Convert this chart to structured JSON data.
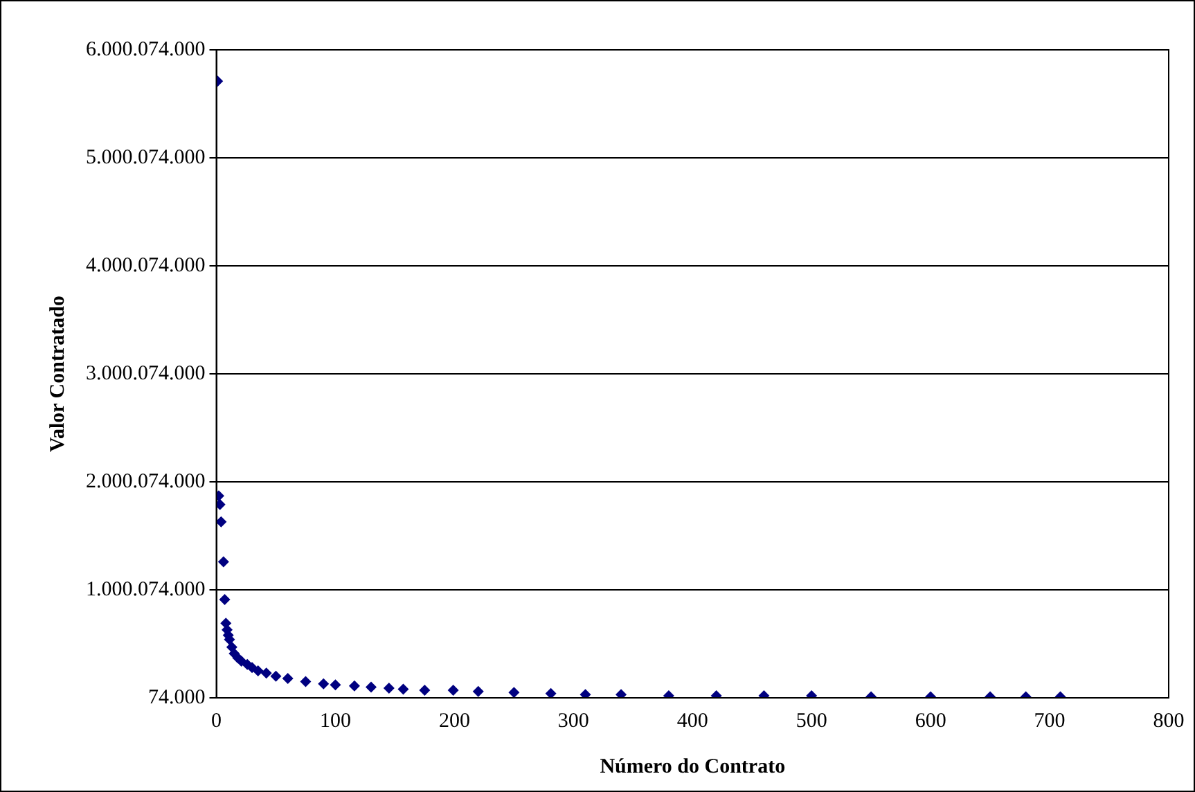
{
  "chart_data": {
    "type": "scatter",
    "xlabel": "Número do Contrato",
    "ylabel": "Valor Contratado",
    "x": [
      1,
      2,
      3,
      4,
      6,
      7,
      8,
      9,
      10,
      11,
      13,
      15,
      18,
      21,
      26,
      30,
      35,
      42,
      50,
      60,
      75,
      90,
      100,
      116,
      130,
      145,
      157,
      175,
      199,
      220,
      250,
      281,
      310,
      340,
      380,
      420,
      460,
      500,
      550,
      600,
      650,
      680,
      709
    ],
    "series": [
      {
        "color": "#000080",
        "values": [
          5710000000,
          1870000000,
          1790000000,
          1630000000,
          1260000000,
          910000000,
          690000000,
          630000000,
          580000000,
          540000000,
          470000000,
          410000000,
          370000000,
          340000000,
          310000000,
          280000000,
          250000000,
          230000000,
          200000000,
          180000000,
          150000000,
          130000000,
          120000000,
          110000000,
          100000000,
          90000000,
          80000000,
          70000000,
          70000000,
          60000000,
          50000000,
          40000000,
          30000000,
          30000000,
          20000000,
          20000000,
          20000000,
          20000000,
          10000000,
          10000000,
          10000000,
          10000000,
          10000000
        ]
      }
    ],
    "xlim": [
      0,
      800
    ],
    "xticks": [
      0,
      100,
      200,
      300,
      400,
      500,
      600,
      700,
      800
    ],
    "ylim": [
      74000,
      6000074000
    ],
    "yticks": [
      {
        "value": 74000,
        "label": "74.000"
      },
      {
        "value": 1000074000,
        "label": "1.000.074.000"
      },
      {
        "value": 2000074000,
        "label": "2.000.074.000"
      },
      {
        "value": 3000074000,
        "label": "3.000.074.000"
      },
      {
        "value": 4000074000,
        "label": "4.000.074.000"
      },
      {
        "value": 5000074000,
        "label": "5.000.074.000"
      },
      {
        "value": 6000074000,
        "label": "6.000.074.000"
      }
    ],
    "grid": "y",
    "marker": "diamond",
    "legend": false
  }
}
